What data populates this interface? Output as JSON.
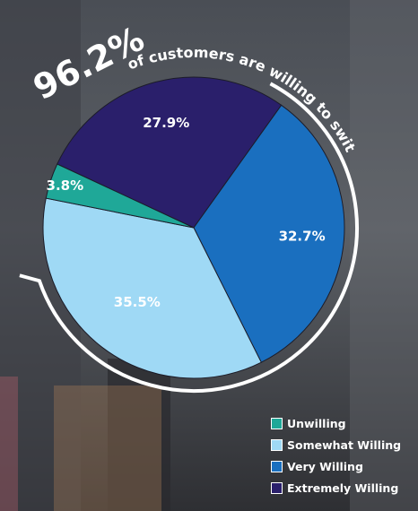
{
  "headline": {
    "percent": "96.2%",
    "text": "of customers are willing to switch"
  },
  "chart_data": {
    "type": "pie",
    "title": "",
    "slices": [
      {
        "name": "Extremely Willing",
        "value": 27.9,
        "label": "27.9%",
        "color": "#2a1f6b"
      },
      {
        "name": "Very Willing",
        "value": 32.7,
        "label": "32.7%",
        "color": "#1a6fbf"
      },
      {
        "name": "Somewhat Willing",
        "value": 35.5,
        "label": "35.5%",
        "color": "#9fd9f5"
      },
      {
        "name": "Unwilling",
        "value": 3.8,
        "label": "3.8%",
        "color": "#1fa898"
      }
    ],
    "legend_position": "bottom-right"
  },
  "legend": {
    "items": [
      {
        "label": "Unwilling",
        "color": "#1fa898"
      },
      {
        "label": "Somewhat Willing",
        "color": "#9fd9f5"
      },
      {
        "label": "Very Willing",
        "color": "#1a6fbf"
      },
      {
        "label": "Extremely Willing",
        "color": "#2a1f6b"
      }
    ]
  }
}
